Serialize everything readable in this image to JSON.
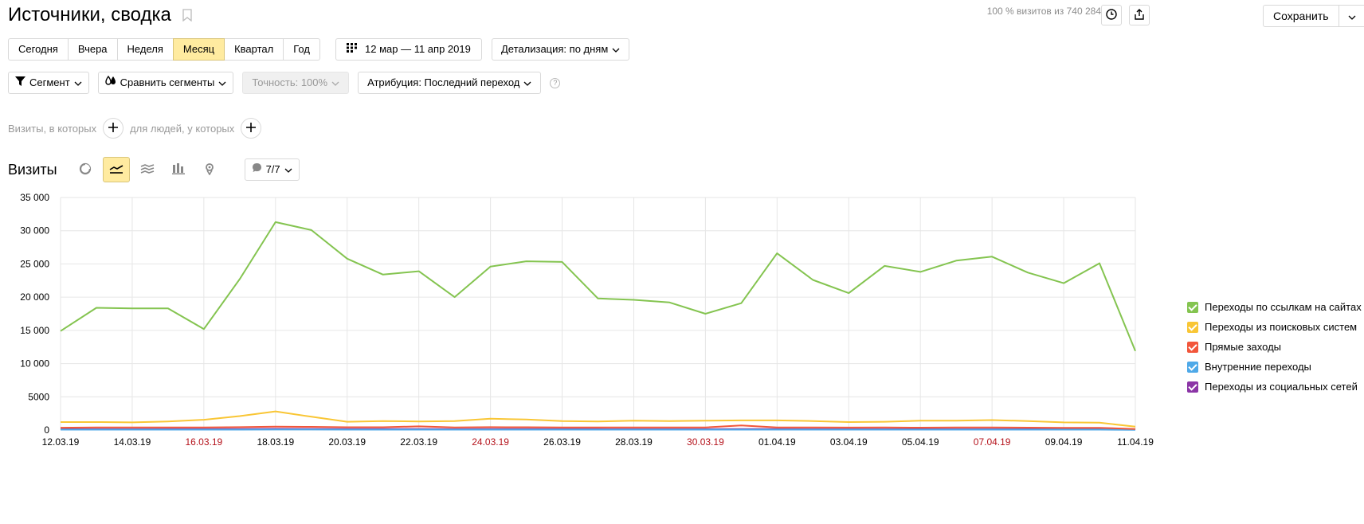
{
  "title": "Источники, сводка",
  "header": {
    "visits_note": "100 % визитов из 740 284",
    "save_label": "Сохранить"
  },
  "periods": [
    "Сегодня",
    "Вчера",
    "Неделя",
    "Месяц",
    "Квартал",
    "Год"
  ],
  "active_period": "Месяц",
  "date_range": "12 мар — 11 апр 2019",
  "detail": "Детализация: по дням",
  "segment": "Сегмент",
  "compare": "Сравнить сегменты",
  "precision": "Точность: 100%",
  "attribution": "Атрибуция: Последний переход",
  "filter": {
    "visits_label": "Визиты, в которых",
    "people_label": "для людей, у которых"
  },
  "visits_title": "Визиты",
  "annotations_label": "7/7",
  "chart_data": {
    "type": "line",
    "x": [
      "12.03.19",
      "13.03.19",
      "14.03.19",
      "15.03.19",
      "16.03.19",
      "17.03.19",
      "18.03.19",
      "19.03.19",
      "20.03.19",
      "21.03.19",
      "22.03.19",
      "23.03.19",
      "24.03.19",
      "25.03.19",
      "26.03.19",
      "27.03.19",
      "28.03.19",
      "29.03.19",
      "30.03.19",
      "31.03.19",
      "01.04.19",
      "02.04.19",
      "03.04.19",
      "04.04.19",
      "05.04.19",
      "06.04.19",
      "07.04.19",
      "08.04.19",
      "09.04.19",
      "10.04.19",
      "11.04.19"
    ],
    "xtick_labels": [
      "12.03.19",
      "14.03.19",
      "16.03.19",
      "18.03.19",
      "20.03.19",
      "22.03.19",
      "24.03.19",
      "26.03.19",
      "28.03.19",
      "30.03.19",
      "01.04.19",
      "03.04.19",
      "05.04.19",
      "07.04.19",
      "09.04.19",
      "11.04.19"
    ],
    "weekend_ticks": [
      "16.03.19",
      "24.03.19",
      "30.03.19",
      "07.04.19"
    ],
    "ylim": [
      0,
      35000
    ],
    "yticks": [
      "0",
      "5000",
      "10 000",
      "15 000",
      "20 000",
      "25 000",
      "30 000",
      "35 000"
    ],
    "grid": true,
    "legend_position": "right",
    "series": [
      {
        "name": "Переходы по ссылкам на сайтах",
        "color": "#84c450",
        "values": [
          14900,
          18400,
          18300,
          18300,
          15200,
          22700,
          31300,
          30100,
          25800,
          23400,
          23900,
          20000,
          24600,
          25400,
          25300,
          19800,
          19600,
          19200,
          17500,
          19100,
          26600,
          22600,
          20600,
          24700,
          23800,
          25500,
          26100,
          23700,
          22100,
          25100,
          11900
        ]
      },
      {
        "name": "Переходы из поисковых систем",
        "color": "#f9c635",
        "values": [
          1200,
          1200,
          1150,
          1300,
          1550,
          2100,
          2800,
          2000,
          1250,
          1350,
          1300,
          1350,
          1700,
          1600,
          1350,
          1300,
          1400,
          1350,
          1400,
          1450,
          1450,
          1350,
          1200,
          1250,
          1400,
          1400,
          1500,
          1350,
          1150,
          1100,
          500
        ]
      },
      {
        "name": "Прямые заходы",
        "color": "#f2563b",
        "values": [
          350,
          380,
          380,
          400,
          400,
          430,
          500,
          480,
          420,
          420,
          550,
          400,
          430,
          420,
          400,
          400,
          380,
          380,
          400,
          700,
          400,
          380,
          370,
          380,
          360,
          380,
          380,
          360,
          340,
          340,
          150
        ]
      },
      {
        "name": "Внутренние переходы",
        "color": "#4fa9e8",
        "values": [
          60,
          60,
          60,
          60,
          60,
          60,
          70,
          70,
          60,
          60,
          60,
          60,
          60,
          60,
          60,
          60,
          60,
          60,
          60,
          60,
          60,
          60,
          60,
          60,
          60,
          60,
          60,
          60,
          60,
          60,
          30
        ]
      },
      {
        "name": "Переходы из социальных сетей",
        "color": "#8b35a6",
        "values": [
          120,
          130,
          130,
          140,
          140,
          160,
          180,
          170,
          140,
          140,
          150,
          130,
          140,
          140,
          140,
          140,
          130,
          130,
          130,
          140,
          140,
          130,
          130,
          130,
          130,
          130,
          130,
          130,
          120,
          120,
          60
        ]
      }
    ]
  }
}
